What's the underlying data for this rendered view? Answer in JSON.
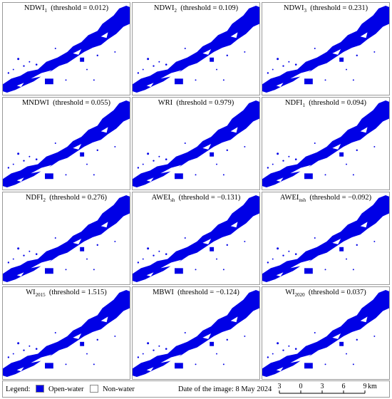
{
  "panels": [
    {
      "name": "NDWI",
      "sub": "1",
      "threshold": "(threshold = 0.012)"
    },
    {
      "name": "NDWI",
      "sub": "2",
      "threshold": "(threshold = 0.109)"
    },
    {
      "name": "NDWI",
      "sub": "3",
      "threshold": "(threshold = 0.231)"
    },
    {
      "name": "MNDWI",
      "sub": null,
      "threshold": "(threshold = 0.055)"
    },
    {
      "name": "WRI",
      "sub": null,
      "threshold": "(threshold = 0.979)"
    },
    {
      "name": "NDFI",
      "sub": "1",
      "threshold": "(threshold = 0.094)"
    },
    {
      "name": "NDFI",
      "sub": "2",
      "threshold": "(threshold = 0.276)"
    },
    {
      "name": "AWEI",
      "sub": "sh",
      "threshold": "(threshold = −0.131)"
    },
    {
      "name": "AWEI",
      "sub": "nsh",
      "threshold": "(threshold = −0.092)"
    },
    {
      "name": "WI",
      "sub": "2015",
      "threshold": "(threshold = 1.515)"
    },
    {
      "name": "MBWI",
      "sub": null,
      "threshold": "(threshold = −0.124)"
    },
    {
      "name": "WI",
      "sub": "2020",
      "threshold": "(threshold = 0.037)"
    }
  ],
  "legend": {
    "title": "Legend:",
    "items": [
      "Open-water",
      "Non-water"
    ]
  },
  "date": "Date of the image: 8 May 2024",
  "scale_bar": {
    "ticks": [
      "3",
      "0",
      "3",
      "6",
      "9"
    ],
    "unit": "km"
  }
}
